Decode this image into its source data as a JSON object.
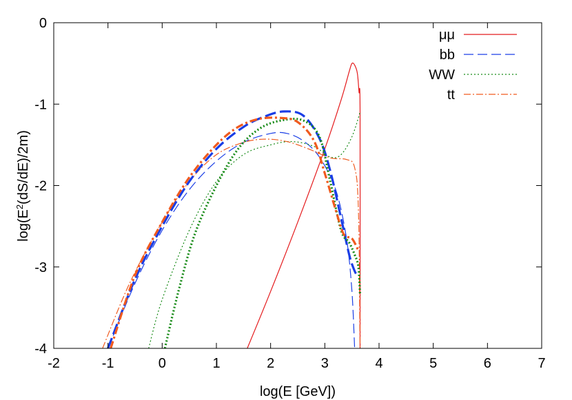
{
  "chart_data": {
    "type": "line",
    "xlabel": "log(E [GeV])",
    "ylabel_base": "log(E",
    "ylabel_sup": "2",
    "ylabel_rest": "(dS/dE)/2m)",
    "xlim": [
      -2,
      7
    ],
    "ylim": [
      -4,
      0
    ],
    "x_ticks": [
      "-2",
      "-1",
      "0",
      "1",
      "2",
      "3",
      "4",
      "5",
      "6",
      "7"
    ],
    "y_ticks": [
      "-4",
      "-3",
      "-2",
      "-1",
      "0"
    ],
    "grid": false,
    "legend_position": "top-right",
    "series": [
      {
        "name": "μμ",
        "color": "#e41a1c",
        "width": 1.2,
        "dash": "",
        "x": [
          1.57,
          2.0,
          2.5,
          3.0,
          3.3,
          3.45,
          3.5,
          3.55,
          3.6,
          3.63,
          3.65,
          3.65
        ],
        "y": [
          -4.0,
          -3.3,
          -2.45,
          -1.55,
          -0.95,
          -0.6,
          -0.5,
          -0.52,
          -0.62,
          -0.85,
          -1.1,
          -4.0
        ]
      },
      {
        "name": "bb",
        "color": "#1a3ee6",
        "width": 1.2,
        "dash": "14,6",
        "x": [
          -1.0,
          -0.5,
          0.0,
          0.5,
          1.0,
          1.5,
          2.0,
          2.3,
          2.6,
          2.9,
          3.2,
          3.4,
          3.5,
          3.55
        ],
        "y": [
          -4.0,
          -3.2,
          -2.55,
          -2.05,
          -1.7,
          -1.47,
          -1.36,
          -1.36,
          -1.45,
          -1.65,
          -2.05,
          -2.65,
          -3.3,
          -4.0
        ]
      },
      {
        "name": "WW",
        "color": "#168a16",
        "width": 1.2,
        "dash": "2,3",
        "x": [
          -0.25,
          0.0,
          0.5,
          1.0,
          1.5,
          2.0,
          2.4,
          2.8,
          3.1,
          3.3,
          3.5,
          3.65
        ],
        "y": [
          -4.0,
          -3.4,
          -2.55,
          -1.95,
          -1.62,
          -1.5,
          -1.46,
          -1.52,
          -1.65,
          -1.62,
          -1.4,
          -1.1
        ]
      },
      {
        "name": "tt",
        "color": "#f05a1e",
        "width": 1.2,
        "dash": "10,3,2,3",
        "x": [
          -1.1,
          -0.6,
          0.0,
          0.5,
          1.0,
          1.5,
          1.9,
          2.3,
          2.7,
          3.1,
          3.4,
          3.55,
          3.62,
          3.65
        ],
        "y": [
          -4.0,
          -3.2,
          -2.45,
          -1.95,
          -1.62,
          -1.47,
          -1.43,
          -1.46,
          -1.55,
          -1.66,
          -1.68,
          -1.78,
          -2.3,
          -4.0
        ]
      },
      {
        "name": "",
        "color": "#1a3ee6",
        "width": 3.2,
        "dash": "16,6",
        "x": [
          -1.0,
          -0.5,
          0.0,
          0.5,
          1.0,
          1.5,
          1.9,
          2.25,
          2.6,
          2.9,
          3.1,
          3.3,
          3.45,
          3.55,
          3.62
        ],
        "y": [
          -4.0,
          -3.15,
          -2.5,
          -1.95,
          -1.55,
          -1.28,
          -1.15,
          -1.09,
          -1.14,
          -1.42,
          -1.82,
          -2.4,
          -2.85,
          -3.05,
          -3.12
        ]
      },
      {
        "name": "",
        "color": "#168a16",
        "width": 3.2,
        "dash": "2,3",
        "x": [
          0.05,
          0.3,
          0.6,
          1.0,
          1.4,
          1.8,
          2.2,
          2.6,
          2.9,
          3.1,
          3.3,
          3.45,
          3.55,
          3.62,
          3.65
        ],
        "y": [
          -4.0,
          -3.3,
          -2.6,
          -2.0,
          -1.55,
          -1.3,
          -1.2,
          -1.2,
          -1.4,
          -1.95,
          -2.55,
          -2.7,
          -2.85,
          -3.0,
          -3.35
        ]
      },
      {
        "name": "",
        "color": "#f05a1e",
        "width": 3.2,
        "dash": "11,4,3,4",
        "x": [
          -0.95,
          -0.5,
          0.0,
          0.5,
          1.0,
          1.4,
          1.8,
          2.2,
          2.5,
          2.8,
          3.0,
          3.2,
          3.35,
          3.5,
          3.62
        ],
        "y": [
          -4.0,
          -3.1,
          -2.45,
          -1.9,
          -1.5,
          -1.28,
          -1.18,
          -1.17,
          -1.22,
          -1.45,
          -1.85,
          -2.3,
          -2.6,
          -2.65,
          -2.8
        ]
      }
    ]
  }
}
